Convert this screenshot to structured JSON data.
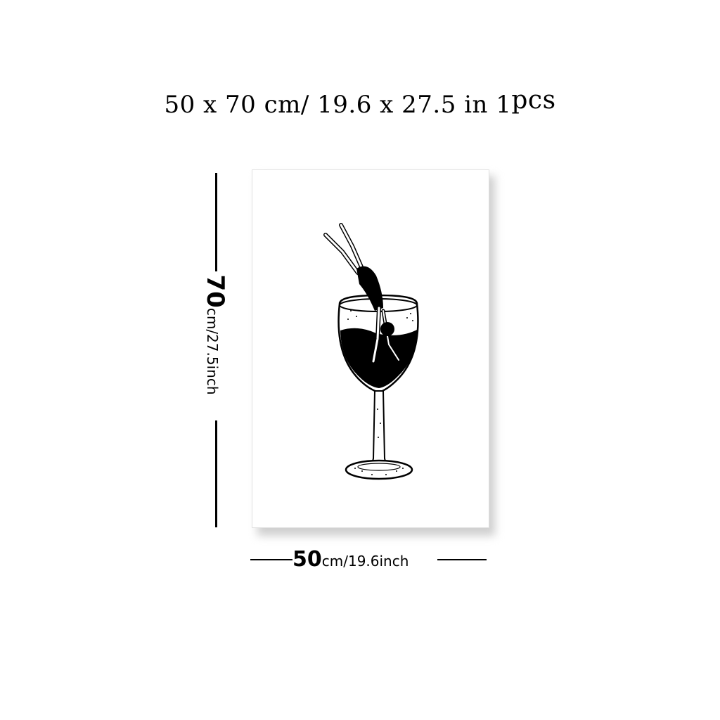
{
  "title": {
    "size_text": "50 x 70 cm/ 19.6 x 27.5 in",
    "quantity": "1",
    "quantity_unit": "pcs"
  },
  "height_label": {
    "value": "70",
    "unit_text": "cm/27.5inch"
  },
  "width_label": {
    "value": "50",
    "unit_text": "cm/19.6inch"
  },
  "colors": {
    "ink": "#000000",
    "background": "#ffffff",
    "shadow": "#cfcfcf"
  }
}
